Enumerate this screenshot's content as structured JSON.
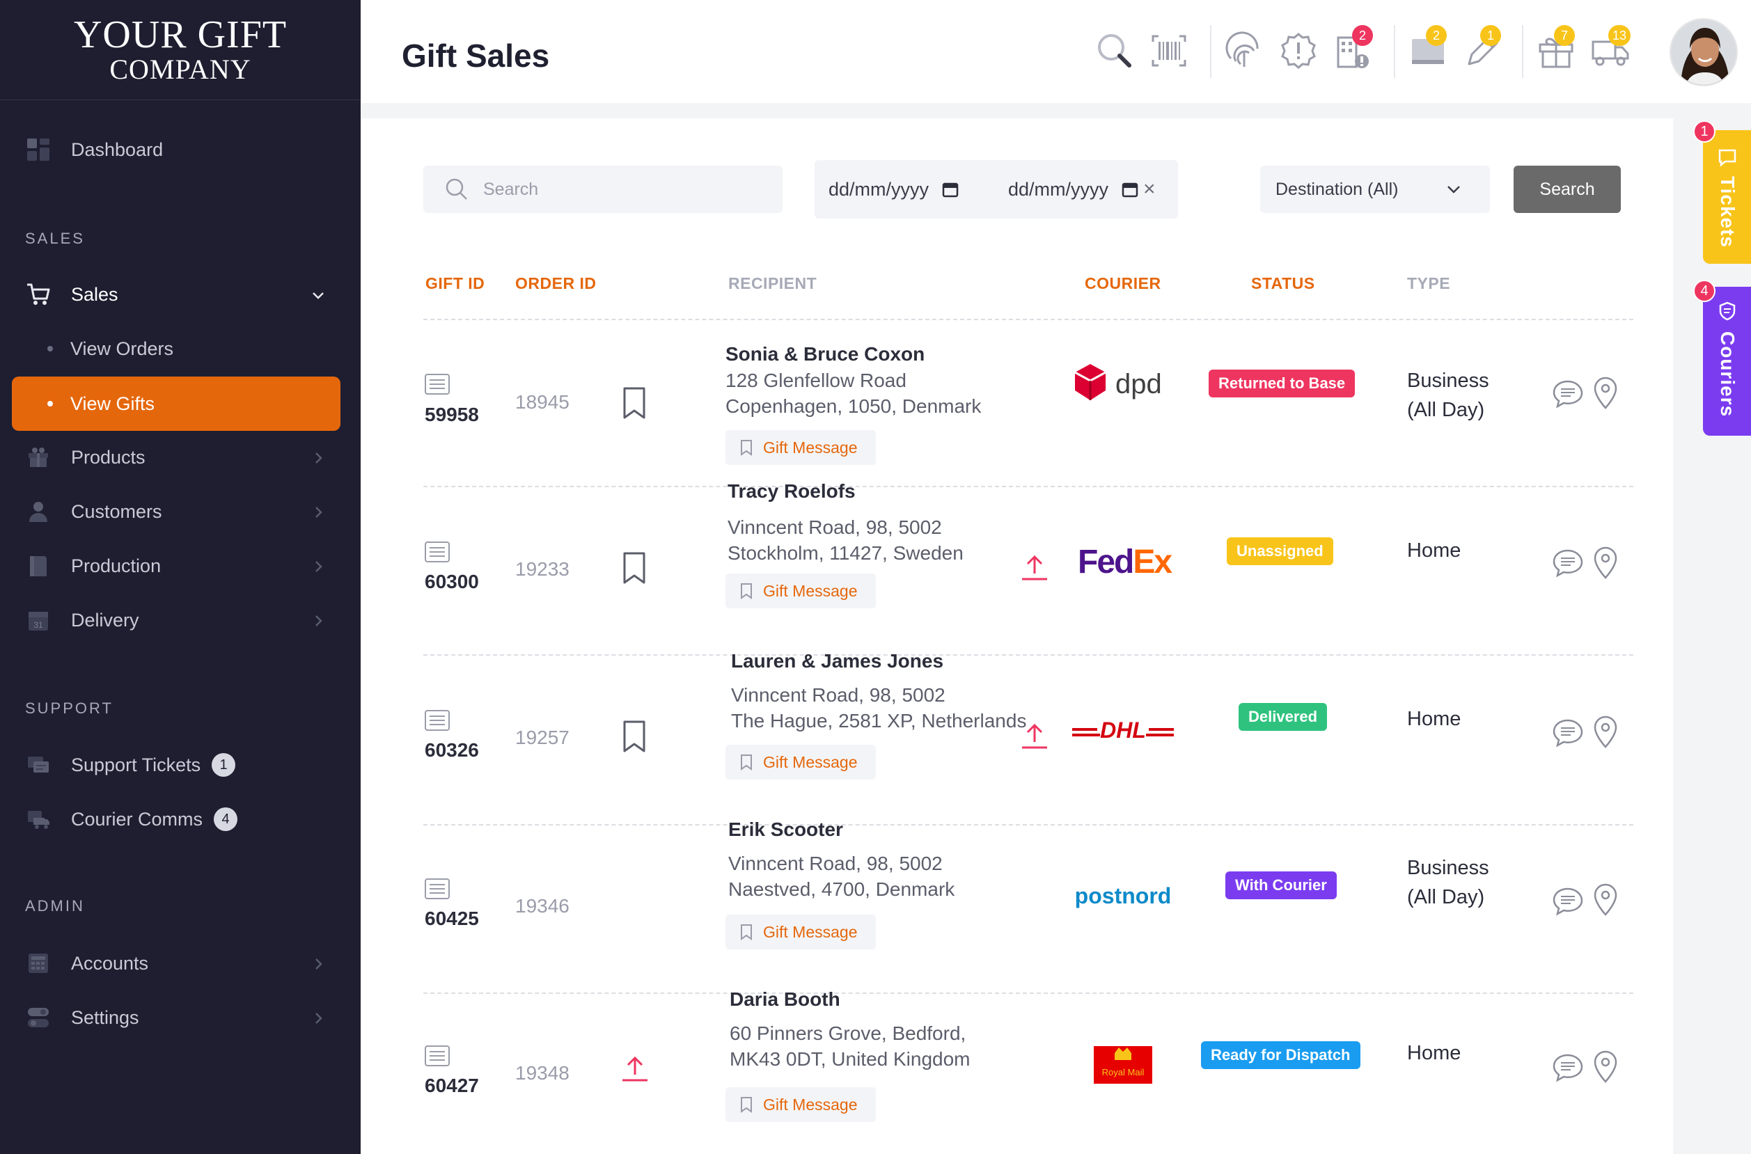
{
  "brand": {
    "line1": "YOUR GIFT",
    "line2": "COMPANY"
  },
  "header": {
    "title": "Gift Sales",
    "badges": {
      "alerts": "2",
      "monitor": "2",
      "edit": "1",
      "gifts": "7",
      "delivery": "13"
    }
  },
  "sidebar": {
    "dashboard": "Dashboard",
    "section_sales": "SALES",
    "sales": "Sales",
    "view_orders": "View Orders",
    "view_gifts": "View Gifts",
    "products": "Products",
    "customers": "Customers",
    "production": "Production",
    "delivery": "Delivery",
    "section_support": "SUPPORT",
    "support_tickets": "Support Tickets",
    "support_tickets_count": "1",
    "courier_comms": "Courier Comms",
    "courier_comms_count": "4",
    "section_admin": "ADMIN",
    "accounts": "Accounts",
    "settings": "Settings"
  },
  "filters": {
    "search_placeholder": "Search",
    "date_from": "dd/mm/yyyy",
    "date_to": "dd/mm/yyyy",
    "clear": "×",
    "destination": "Destination (All)",
    "search_button": "Search"
  },
  "table": {
    "headers": {
      "gift_id": "GIFT ID",
      "order_id": "ORDER ID",
      "recipient": "RECIPIENT",
      "courier": "COURIER",
      "status": "STATUS",
      "type": "TYPE"
    },
    "gift_message_label": "Gift Message",
    "rows": [
      {
        "gift_id": "59958",
        "order_id": "18945",
        "name": "Sonia & Bruce Coxon",
        "addr1": "128 Glenfellow Road",
        "addr2": "Copenhagen, 1050, Denmark",
        "courier": "dpd",
        "status": "Returned to Base",
        "type1": "Business",
        "type2": "(All Day)"
      },
      {
        "gift_id": "60300",
        "order_id": "19233",
        "name": "Tracy Roelofs",
        "addr1": "Vinncent Road, 98, 5002",
        "addr2": "Stockholm, 11427, Sweden",
        "courier": "FedEx",
        "status": "Unassigned",
        "type1": "Home",
        "type2": ""
      },
      {
        "gift_id": "60326",
        "order_id": "19257",
        "name": "Lauren & James Jones",
        "addr1": "Vinncent Road, 98, 5002",
        "addr2": "The Hague, 2581 XP, Netherlands",
        "courier": "DHL",
        "status": "Delivered",
        "type1": "Home",
        "type2": ""
      },
      {
        "gift_id": "60425",
        "order_id": "19346",
        "name": "Erik Scooter",
        "addr1": "Vinncent Road, 98, 5002",
        "addr2": "Naestved, 4700, Denmark",
        "courier": "postnord",
        "status": "With Courier",
        "type1": "Business",
        "type2": "(All Day)"
      },
      {
        "gift_id": "60427",
        "order_id": "19348",
        "name": "Daria Booth",
        "addr1": "60 Pinners Grove, Bedford,",
        "addr2": "MK43 0DT, United Kingdom",
        "courier": "Royal Mail",
        "status": "Ready for Dispatch",
        "type1": "Home",
        "type2": ""
      }
    ]
  },
  "sidetabs": {
    "tickets": "Tickets",
    "tickets_count": "1",
    "couriers": "Couriers",
    "couriers_count": "4"
  },
  "colors": {
    "accent": "#e5670c",
    "sidebar": "#1e1e30",
    "status_red": "#ee3560",
    "status_yellow": "#f8c41a",
    "status_green": "#2ec27e",
    "status_purple": "#7b3cf0",
    "status_blue": "#1a9cf0"
  }
}
